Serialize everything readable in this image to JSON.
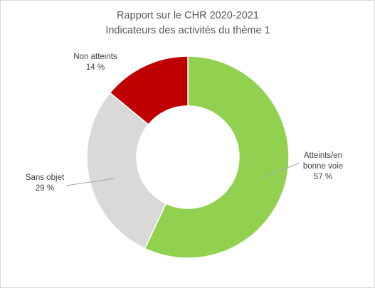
{
  "chart_data": {
    "type": "pie",
    "variant": "doughnut",
    "title": [
      "Rapport sur le CHR 2020-2021",
      "Indicateurs des activités du thème 1"
    ],
    "slices": [
      {
        "category": [
          "Atteints/en",
          "bonne voie"
        ],
        "value": 57,
        "value_label": "57 %",
        "color": "#92d050"
      },
      {
        "category": [
          "Sans objet"
        ],
        "value": 29,
        "value_label": "29 %",
        "color": "#d9d9d9"
      },
      {
        "category": [
          "Non atteints"
        ],
        "value": 14,
        "value_label": "14 %",
        "color": "#c00000"
      }
    ],
    "start_angle_deg": 0,
    "direction": "clockwise",
    "legend": "none"
  }
}
